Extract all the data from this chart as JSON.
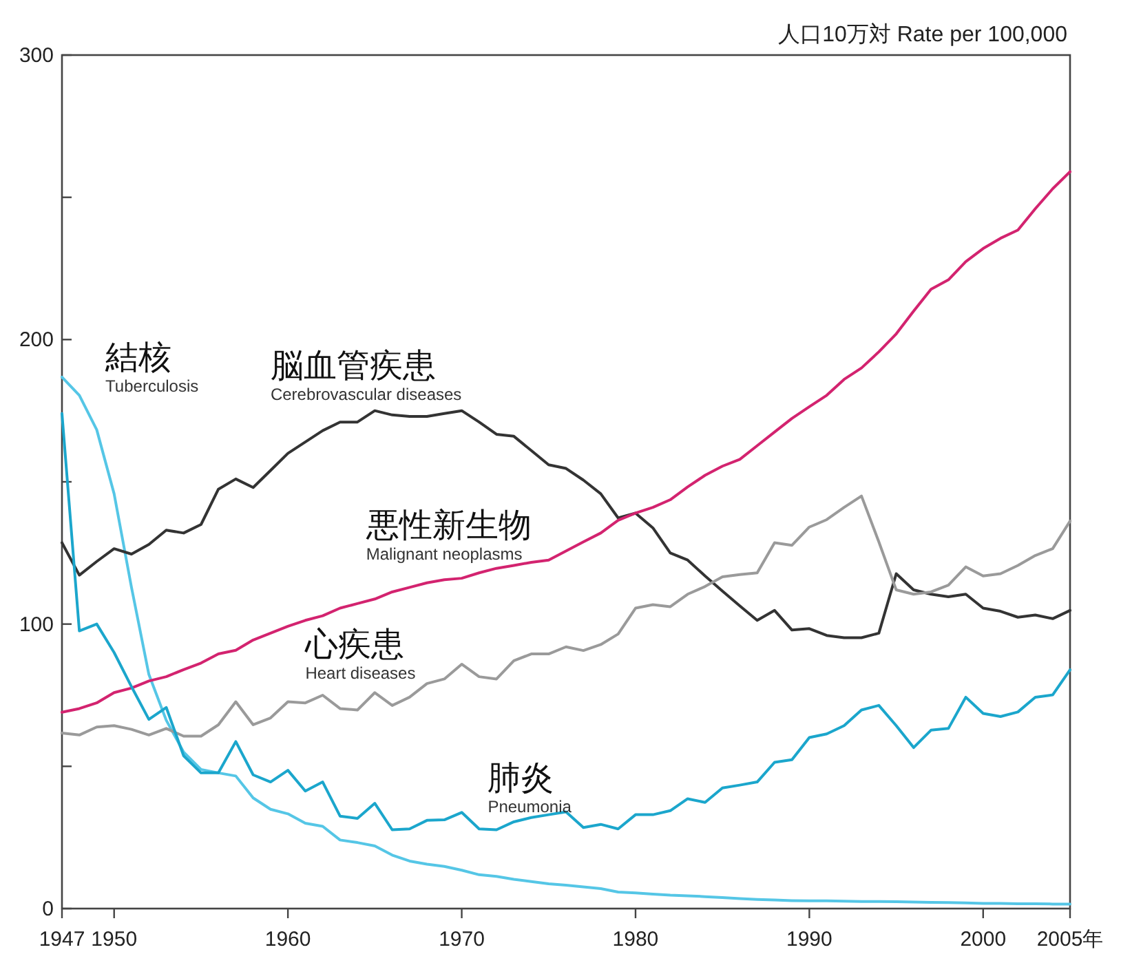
{
  "chart_data": {
    "type": "line",
    "ylabel": "人口10万対  Rate per 100,000",
    "x": [
      1947,
      1948,
      1949,
      1950,
      1951,
      1952,
      1953,
      1954,
      1955,
      1956,
      1957,
      1958,
      1959,
      1960,
      1961,
      1962,
      1963,
      1964,
      1965,
      1966,
      1967,
      1968,
      1969,
      1970,
      1971,
      1972,
      1973,
      1974,
      1975,
      1976,
      1977,
      1978,
      1979,
      1980,
      1981,
      1982,
      1983,
      1984,
      1985,
      1986,
      1987,
      1988,
      1989,
      1990,
      1991,
      1992,
      1993,
      1994,
      1995,
      1996,
      1997,
      1998,
      1999,
      2000,
      2001,
      2002,
      2003,
      2004,
      2005
    ],
    "series": [
      {
        "name": "結核\nTuberculosis",
        "color": "#55c6e6",
        "values": [
          186.8,
          180.4,
          168.3,
          145.8,
          112.9,
          82.3,
          66.2,
          55,
          48.9,
          47.7,
          46.6,
          38.9,
          34.9,
          33.3,
          30,
          28.9,
          24.1,
          23.2,
          22,
          18.8,
          16.7,
          15.6,
          14.8,
          13.5,
          11.9,
          11.3,
          10.3,
          9.5,
          8.7,
          8.2,
          7.6,
          7,
          5.8,
          5.5,
          5.1,
          4.7,
          4.5,
          4.2,
          3.9,
          3.5,
          3.2,
          3,
          2.8,
          2.7,
          2.7,
          2.6,
          2.5,
          2.5,
          2.4,
          2.3,
          2.2,
          2.1,
          2,
          1.8,
          1.8,
          1.7,
          1.7,
          1.6,
          1.6
        ]
      },
      {
        "name": "脳血管疾患\nCerebrovascular diseases",
        "color": "#333333",
        "values": [
          128.6,
          117.2,
          122,
          126.5,
          124.6,
          128,
          133,
          132,
          135,
          147.4,
          151,
          148,
          154,
          160,
          164,
          168,
          171,
          171,
          175,
          173.5,
          173,
          173,
          174,
          175,
          171,
          166.7,
          166,
          161,
          156,
          154.7,
          150.6,
          145.8,
          137.3,
          139,
          133.8,
          125,
          122.5,
          116.9,
          111.6,
          106.4,
          101.3,
          104.8,
          97.9,
          98.4,
          96,
          95.2,
          95.2,
          96.8,
          117.7,
          112,
          110.5,
          109.6,
          110.5,
          105.6,
          104.5,
          102.4,
          103.2,
          101.9,
          104.8
        ]
      },
      {
        "name": "悪性新生物\nMalignant neoplasms",
        "color": "#d3236f",
        "values": [
          69,
          70.3,
          72.3,
          75.9,
          77.5,
          80,
          81.5,
          84,
          86.3,
          89.5,
          90.8,
          94.4,
          96.8,
          99.2,
          101.3,
          102.9,
          105.6,
          107.2,
          108.8,
          111.3,
          112.9,
          114.5,
          115.6,
          116.1,
          118,
          119.6,
          120.6,
          121.7,
          122.5,
          125.7,
          128.9,
          132,
          136.5,
          139,
          141,
          143.7,
          148.2,
          152.3,
          155.5,
          157.9,
          162.7,
          167.5,
          172.3,
          176.4,
          180.4,
          186,
          190,
          195.7,
          202,
          210,
          217.7,
          221,
          227.4,
          232,
          235.6,
          238.5,
          246,
          253,
          259
        ]
      },
      {
        "name": "心疾患\nHeart diseases",
        "color": "#9a9a9a",
        "values": [
          61.7,
          61,
          63.8,
          64.3,
          63,
          61,
          63.3,
          60.6,
          60.6,
          64.6,
          72.7,
          64.6,
          67,
          72.7,
          72.3,
          75,
          70.3,
          69.8,
          75.9,
          71.4,
          74.3,
          79.1,
          80.7,
          85.9,
          81.5,
          80.7,
          87.1,
          89.5,
          89.5,
          92,
          90.7,
          92.8,
          96.5,
          105.6,
          106.8,
          106.1,
          110.5,
          113.2,
          116.6,
          117.4,
          118,
          128.6,
          127.7,
          134.1,
          136.7,
          141,
          145,
          128.9,
          112,
          110.5,
          111.3,
          113.7,
          120.1,
          116.9,
          117.7,
          120.6,
          124.1,
          126.5,
          136.2
        ]
      },
      {
        "name": "肺炎\nPneumonia",
        "color": "#1ba6cc",
        "values": [
          174,
          97.6,
          100,
          90,
          78,
          66.5,
          70.7,
          53.7,
          47.7,
          47.7,
          58.7,
          47,
          44.5,
          48.6,
          41.3,
          44.5,
          32.5,
          31.7,
          37,
          27.7,
          28,
          31,
          31.2,
          33.8,
          28,
          27.7,
          30.5,
          32,
          33,
          34,
          28.5,
          29.6,
          28,
          33,
          33,
          34.4,
          38.6,
          37.3,
          42.4,
          43.4,
          44.5,
          51.4,
          52.3,
          60.1,
          61.4,
          64.3,
          69.8,
          71.4,
          64.3,
          56.6,
          62.7,
          63.3,
          74.3,
          68.6,
          67.5,
          69.1,
          74.3,
          75.1,
          83.9
        ]
      }
    ],
    "xlim": [
      1947,
      2005
    ],
    "xticks": [
      1947,
      1950,
      1960,
      1970,
      1980,
      1990,
      2000,
      {
        "value": 2005,
        "label": "2005年"
      }
    ],
    "ylim": [
      0,
      300
    ],
    "yticks": [
      0,
      {
        "value": 50,
        "label": null
      },
      100,
      {
        "value": 150,
        "label": null
      },
      200,
      {
        "value": 250,
        "label": null
      },
      300
    ],
    "grid": false,
    "legend": false,
    "marker": "none",
    "line_style": "solid"
  }
}
